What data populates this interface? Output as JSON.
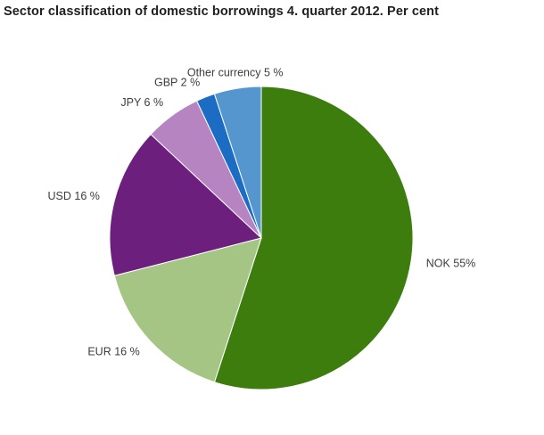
{
  "title": "Sector classification of domestic borrowings 4. quarter 2012. Per cent",
  "chart_data": {
    "type": "pie",
    "title": "Sector classification of domestic borrowings 4. quarter 2012. Per cent",
    "legend_position": "none",
    "start_angle_deg": 0,
    "direction": "clockwise",
    "slices": [
      {
        "id": "nok",
        "name": "NOK",
        "value": 55,
        "label": "NOK 55%",
        "color": "#3c7d0e"
      },
      {
        "id": "eur",
        "name": "EUR",
        "value": 16,
        "label": "EUR 16 %",
        "color": "#a5c585"
      },
      {
        "id": "usd",
        "name": "USD",
        "value": 16,
        "label": "USD 16 %",
        "color": "#6d1f7e"
      },
      {
        "id": "jpy",
        "name": "JPY",
        "value": 6,
        "label": "JPY 6 %",
        "color": "#b685c1"
      },
      {
        "id": "gbp",
        "name": "GBP",
        "value": 2,
        "label": "GBP 2 %",
        "color": "#1d6cc4"
      },
      {
        "id": "other",
        "name": "Other currency",
        "value": 5,
        "label": "Other currency 5 %",
        "color": "#5596cf"
      }
    ]
  }
}
